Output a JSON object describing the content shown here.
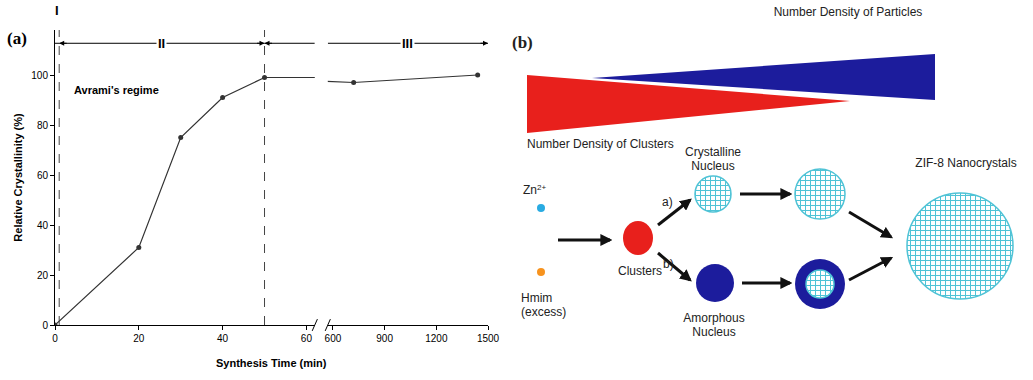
{
  "chart_data": {
    "type": "line",
    "panel_label": "(a)",
    "x_label": "Synthesis Time (min)",
    "y_label": "Relative Crystallinity (%)",
    "x": [
      0,
      20,
      30,
      40,
      50,
      720,
      1440
    ],
    "values": [
      0,
      31,
      75,
      91,
      99,
      97,
      100
    ],
    "color": "#333333",
    "marker": "circle",
    "line_style": "solid",
    "grid": false,
    "x_segments": [
      {
        "xlim": [
          0,
          62
        ],
        "xticks": [
          0,
          20,
          40,
          60
        ]
      },
      {
        "xlim": [
          570,
          1500
        ],
        "xticks": [
          600,
          900,
          1200,
          1500
        ]
      }
    ],
    "ylim": [
      0,
      118
    ],
    "yticks": [
      0,
      20,
      40,
      60,
      80,
      100
    ],
    "regions": [
      {
        "label": "I",
        "from": 0,
        "to": 1
      },
      {
        "label": "II",
        "from": 1,
        "to": 50
      },
      {
        "label": "III",
        "from": 50,
        "to": 1500
      }
    ],
    "annotations": [
      {
        "text": "Avrami's regime",
        "x": 4,
        "y": 94
      }
    ]
  },
  "diagram": {
    "panel_label": "(b)",
    "particles_wedge": {
      "label": "Number Density of Particles",
      "color": "#1c1c9c"
    },
    "clusters_wedge": {
      "label": "Number Density of Clusters",
      "color": "#e8201c"
    },
    "reactants": [
      {
        "base": "Zn",
        "sup": "2+",
        "color": "#29abe2"
      },
      {
        "lines": [
          "Hmim",
          "(excess)"
        ],
        "color": "#f7931e"
      }
    ],
    "clusters": {
      "label": "Clusters",
      "color": "#e8201c"
    },
    "paths": [
      {
        "label": "a)",
        "nucleus": [
          "Crystalline",
          "Nucleus"
        ]
      },
      {
        "label": "b)",
        "nucleus": [
          "Amorphous",
          "Nucleus"
        ]
      }
    ],
    "product": "ZIF-8 Nanocrystals",
    "grid_color": "#4fc3d6",
    "amorphous_color": "#1c1c9c"
  }
}
